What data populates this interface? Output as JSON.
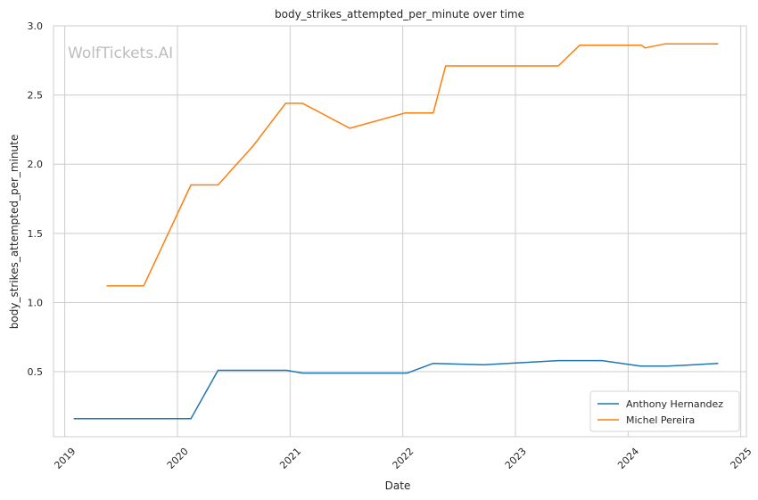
{
  "chart_data": {
    "type": "line",
    "title": "body_strikes_attempted_per_minute over time",
    "xlabel": "Date",
    "ylabel": "body_strikes_attempted_per_minute",
    "watermark": "WolfTickets.AI",
    "xlim": [
      2018.9,
      2025.05
    ],
    "ylim": [
      0.03,
      3.0
    ],
    "xticks": [
      2019,
      2020,
      2021,
      2022,
      2023,
      2024,
      2025
    ],
    "xtick_labels": [
      "2019",
      "2020",
      "2021",
      "2022",
      "2023",
      "2024",
      "2025"
    ],
    "yticks": [
      0.5,
      1.0,
      1.5,
      2.0,
      2.5,
      3.0
    ],
    "ytick_labels": [
      "0.5",
      "1.0",
      "1.5",
      "2.0",
      "2.5",
      "3.0"
    ],
    "grid": true,
    "legend_position": "lower-right",
    "series": [
      {
        "name": "Anthony Hernandez",
        "color": "#1f77b4",
        "x": [
          2019.08,
          2020.12,
          2020.36,
          2020.97,
          2021.11,
          2022.04,
          2022.27,
          2022.72,
          2023.38,
          2023.77,
          2024.11,
          2024.35,
          2024.8
        ],
        "y": [
          0.16,
          0.16,
          0.51,
          0.51,
          0.49,
          0.49,
          0.56,
          0.55,
          0.58,
          0.58,
          0.54,
          0.54,
          0.56
        ]
      },
      {
        "name": "Michel Pereira",
        "color": "#ff7f0e",
        "x": [
          2019.37,
          2019.7,
          2020.12,
          2020.36,
          2020.67,
          2020.96,
          2021.11,
          2021.53,
          2022.02,
          2022.27,
          2022.38,
          2023.38,
          2023.57,
          2024.12,
          2024.15,
          2024.33,
          2024.8
        ],
        "y": [
          1.12,
          1.12,
          1.85,
          1.85,
          2.13,
          2.44,
          2.44,
          2.26,
          2.37,
          2.37,
          2.71,
          2.71,
          2.86,
          2.86,
          2.84,
          2.87,
          2.87
        ]
      }
    ]
  }
}
